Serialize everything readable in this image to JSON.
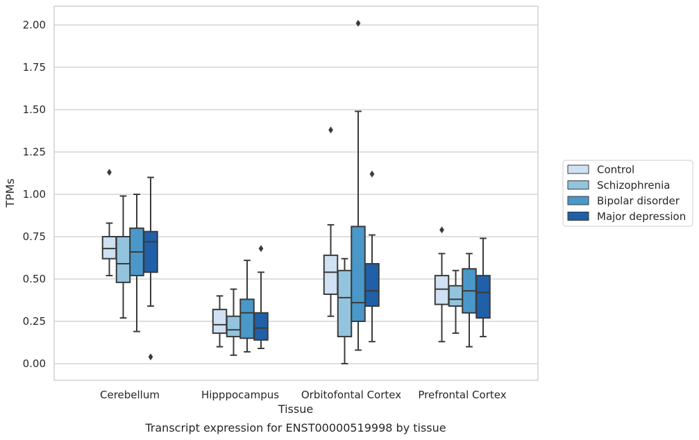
{
  "caption": "Transcript expression for ENST00000519998 by tissue",
  "chart_data": {
    "type": "box",
    "title": "",
    "xlabel": "Tissue",
    "ylabel": "TPMs",
    "ylim": [
      -0.1,
      2.11
    ],
    "yticks": [
      0.0,
      0.25,
      0.5,
      0.75,
      1.0,
      1.25,
      1.5,
      1.75,
      2.0
    ],
    "ytick_labels": [
      "0.00",
      "0.25",
      "0.50",
      "0.75",
      "1.00",
      "1.25",
      "1.50",
      "1.75",
      "2.00"
    ],
    "grid": "horizontal",
    "legend_position": "right",
    "categories": [
      "Cerebellum",
      "Hipppocampus",
      "Orbitofontal Cortex",
      "Prefrontal Cortex"
    ],
    "series": [
      {
        "name": "Control",
        "color": "#cfe1f2",
        "boxes": [
          {
            "whisker_low": 0.52,
            "q1": 0.62,
            "median": 0.68,
            "q3": 0.75,
            "whisker_high": 0.83,
            "outliers": [
              1.13
            ]
          },
          {
            "whisker_low": 0.1,
            "q1": 0.18,
            "median": 0.23,
            "q3": 0.32,
            "whisker_high": 0.4,
            "outliers": []
          },
          {
            "whisker_low": 0.28,
            "q1": 0.41,
            "median": 0.54,
            "q3": 0.64,
            "whisker_high": 0.82,
            "outliers": [
              1.38
            ]
          },
          {
            "whisker_low": 0.13,
            "q1": 0.35,
            "median": 0.44,
            "q3": 0.52,
            "whisker_high": 0.65,
            "outliers": [
              0.79
            ]
          }
        ]
      },
      {
        "name": "Schizophrenia",
        "color": "#93c4de",
        "boxes": [
          {
            "whisker_low": 0.27,
            "q1": 0.48,
            "median": 0.59,
            "q3": 0.75,
            "whisker_high": 0.99,
            "outliers": []
          },
          {
            "whisker_low": 0.05,
            "q1": 0.16,
            "median": 0.2,
            "q3": 0.28,
            "whisker_high": 0.44,
            "outliers": []
          },
          {
            "whisker_low": 0.0,
            "q1": 0.16,
            "median": 0.39,
            "q3": 0.55,
            "whisker_high": 0.62,
            "outliers": []
          },
          {
            "whisker_low": 0.18,
            "q1": 0.34,
            "median": 0.38,
            "q3": 0.46,
            "whisker_high": 0.55,
            "outliers": []
          }
        ]
      },
      {
        "name": "Bipolar disorder",
        "color": "#4a98c9",
        "boxes": [
          {
            "whisker_low": 0.19,
            "q1": 0.52,
            "median": 0.66,
            "q3": 0.8,
            "whisker_high": 1.0,
            "outliers": []
          },
          {
            "whisker_low": 0.07,
            "q1": 0.15,
            "median": 0.3,
            "q3": 0.38,
            "whisker_high": 0.61,
            "outliers": []
          },
          {
            "whisker_low": 0.08,
            "q1": 0.25,
            "median": 0.36,
            "q3": 0.81,
            "whisker_high": 1.49,
            "outliers": [
              2.01
            ]
          },
          {
            "whisker_low": 0.1,
            "q1": 0.3,
            "median": 0.43,
            "q3": 0.56,
            "whisker_high": 0.65,
            "outliers": []
          }
        ]
      },
      {
        "name": "Major depression",
        "color": "#2060a8",
        "boxes": [
          {
            "whisker_low": 0.34,
            "q1": 0.54,
            "median": 0.72,
            "q3": 0.78,
            "whisker_high": 1.1,
            "outliers": [
              0.04
            ]
          },
          {
            "whisker_low": 0.09,
            "q1": 0.14,
            "median": 0.21,
            "q3": 0.3,
            "whisker_high": 0.54,
            "outliers": [
              0.68
            ]
          },
          {
            "whisker_low": 0.13,
            "q1": 0.34,
            "median": 0.43,
            "q3": 0.59,
            "whisker_high": 0.76,
            "outliers": [
              1.12
            ]
          },
          {
            "whisker_low": 0.16,
            "q1": 0.27,
            "median": 0.42,
            "q3": 0.52,
            "whisker_high": 0.74,
            "outliers": []
          }
        ]
      }
    ]
  }
}
